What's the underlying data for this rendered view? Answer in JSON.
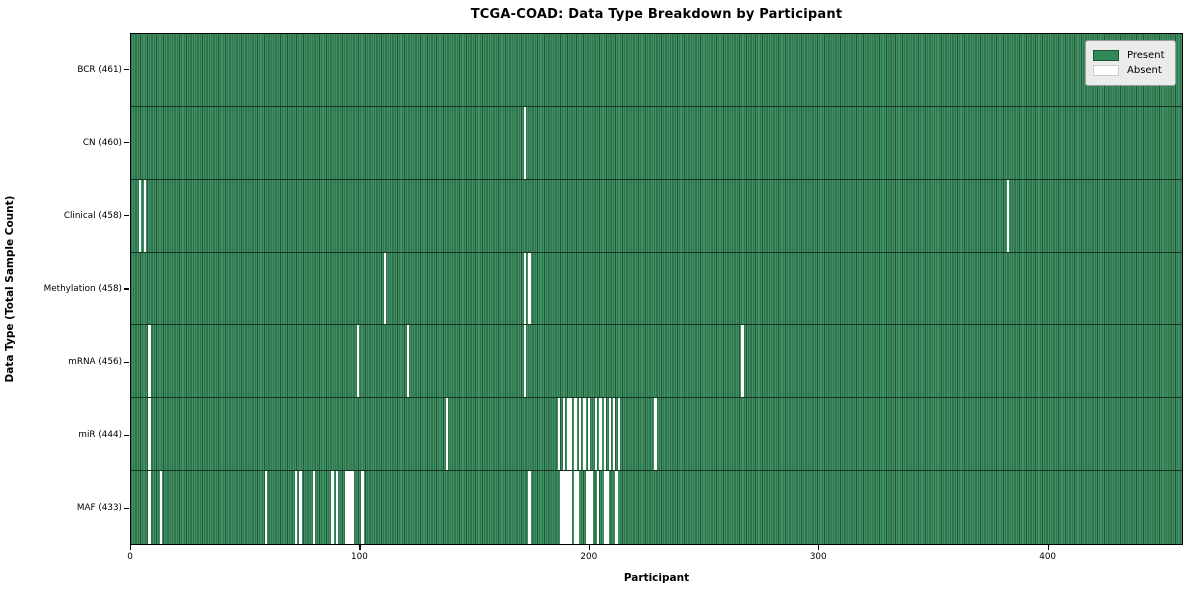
{
  "title": "TCGA-COAD: Data Type Breakdown by Participant",
  "legend": {
    "present_label": "Present",
    "absent_label": "Absent",
    "position": "upper right"
  },
  "colors": {
    "present_green": "#2E8B57",
    "present_stripe_light": "#3e9162",
    "present_stripe_dark": "#24573a",
    "absent_white": "#ffffff",
    "legend_background": "#e9ece8"
  },
  "chart_data": {
    "type": "heatmap",
    "title": "TCGA-COAD: Data Type Breakdown by Participant",
    "xlabel": "Participant",
    "ylabel": "Data Type (Total Sample Count)",
    "x_ticks": [
      0,
      100,
      200,
      300,
      400
    ],
    "x_axis_max": 459,
    "total_participants": 461,
    "grid": false,
    "legend_entries": [
      "Present",
      "Absent"
    ],
    "rows": [
      {
        "data_type": "BCR",
        "label": "BCR (461)",
        "count": 461,
        "absent_participants": []
      },
      {
        "data_type": "CN",
        "label": "CN (460)",
        "count": 460,
        "absent_participants": [
          172
        ]
      },
      {
        "data_type": "Clinical",
        "label": "Clinical (458)",
        "count": 458,
        "absent_participants": [
          4,
          6,
          383
        ]
      },
      {
        "data_type": "Methylation",
        "label": "Methylation (458)",
        "count": 458,
        "absent_participants": [
          111,
          172,
          174
        ]
      },
      {
        "data_type": "mRNA",
        "label": "mRNA (456)",
        "count": 456,
        "absent_participants": [
          8,
          99,
          121,
          172,
          267
        ]
      },
      {
        "data_type": "miR",
        "label": "miR (444)",
        "count": 444,
        "absent_participants": [
          8,
          138,
          187,
          189,
          191,
          192,
          194,
          196,
          198,
          200,
          203,
          205,
          207,
          209,
          211,
          213,
          229
        ]
      },
      {
        "data_type": "MAF",
        "label": "MAF (433)",
        "count": 433,
        "absent_participants": [
          8,
          13,
          59,
          72,
          74,
          80,
          88,
          90,
          94,
          95,
          96,
          97,
          101,
          174,
          188,
          189,
          190,
          191,
          192,
          194,
          195,
          199,
          200,
          201,
          204,
          207,
          208,
          212
        ]
      }
    ]
  }
}
